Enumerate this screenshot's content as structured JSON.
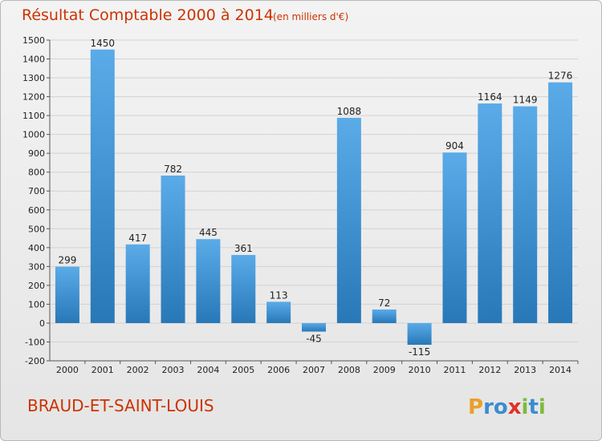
{
  "title": "Résultat Comptable 2000 à 2014",
  "unit_note": "(en milliers d'€)",
  "city": "BRAUD-ET-SAINT-LOUIS",
  "logo": {
    "letters": [
      "P",
      "r",
      "o",
      "x",
      "i",
      "t",
      "i"
    ],
    "colors": [
      "#e8a02c",
      "#3c8ccf",
      "#3c8ccf",
      "#e0302a",
      "#7dbb3c",
      "#3c8ccf",
      "#7dbb3c"
    ]
  },
  "colors": {
    "bar_top": "#5aabe8",
    "bar_bottom": "#2878b8",
    "title": "#cc3300"
  },
  "chart_data": {
    "type": "bar",
    "categories": [
      "2000",
      "2001",
      "2002",
      "2003",
      "2004",
      "2005",
      "2006",
      "2007",
      "2008",
      "2009",
      "2010",
      "2011",
      "2012",
      "2013",
      "2014"
    ],
    "values": [
      299,
      1450,
      417,
      782,
      445,
      361,
      113,
      -45,
      1088,
      72,
      -115,
      904,
      1164,
      1149,
      1276
    ],
    "ylim": [
      -200,
      1500
    ],
    "yticks": [
      -200,
      -100,
      0,
      100,
      200,
      300,
      400,
      500,
      600,
      700,
      800,
      900,
      1000,
      1100,
      1200,
      1300,
      1400,
      1500
    ],
    "grid": true
  }
}
